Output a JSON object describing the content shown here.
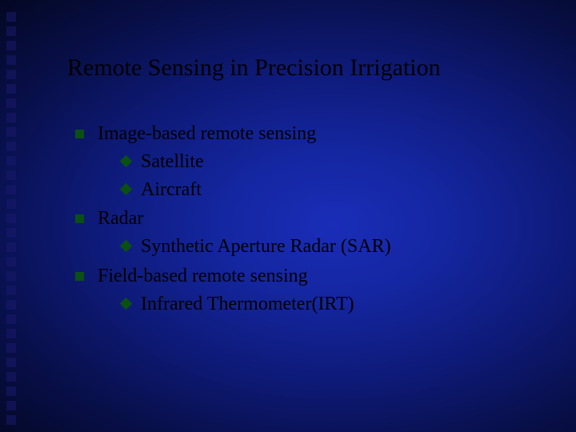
{
  "slide": {
    "background_gradient": {
      "type": "radial",
      "center": "58% 52%",
      "stops": [
        "#1a2db8",
        "#1426a0",
        "#0e1a78",
        "#080f48",
        "#03061f",
        "#000008"
      ]
    },
    "left_decor_square_color": "#1a1a6c",
    "left_decor_square_count": 29,
    "title": "Remote Sensing in Precision Irrigation",
    "title_color": "#000000",
    "title_fontsize": 30,
    "body_color": "#000000",
    "body_fontsize": 24,
    "bullet_lvl1_shape": "square",
    "bullet_lvl1_color": "#0a4f14",
    "bullet_lvl2_shape": "diamond",
    "bullet_lvl2_color": "#0a4f14",
    "items": [
      {
        "label": "Image-based remote sensing",
        "sub": [
          {
            "label": "Satellite"
          },
          {
            "label": "Aircraft"
          }
        ]
      },
      {
        "label": "Radar",
        "sub": [
          {
            "label": "Synthetic Aperture Radar (SAR)"
          }
        ]
      },
      {
        "label": "Field-based remote sensing",
        "sub": [
          {
            "label": "Infrared Thermometer(IRT)"
          }
        ]
      }
    ]
  }
}
